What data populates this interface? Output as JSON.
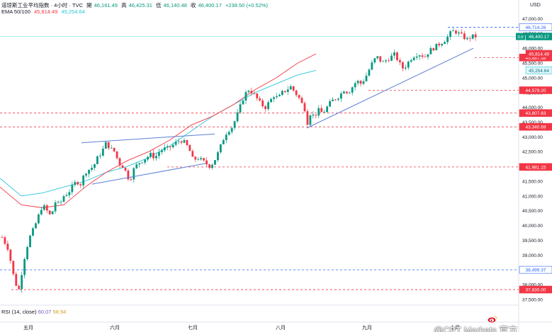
{
  "header": {
    "symbol": "道琼斯工业平均指数 · 4小时 · TVC",
    "open_label": "開",
    "open": "46,161.49",
    "high_label": "高",
    "high": "46,425.31",
    "low_label": "低",
    "low": "46,140.48",
    "close_label": "收",
    "close": "46,400.17",
    "change": "+238.50 (+0.52%)",
    "ema_label": "EMA 50/100",
    "ema50": "45,814.49",
    "ema100": "45,254.64",
    "rsi_label": "RSI (14, close)",
    "rsi1": "60.07",
    "rsi2": "58.94"
  },
  "currency": "USD",
  "watermark": "@CPT Markets 官方",
  "colors": {
    "up": "#089981",
    "down": "#f23645",
    "ema50": "#f23645",
    "ema100": "#26c6da",
    "trendline": "#5b7fd6",
    "level": "#f23645",
    "level_blue": "#2962ff",
    "last_price_bg": "#089981",
    "ema100_tag_bg": "#dff6fb",
    "rsi_yellow": "#d4a017"
  },
  "chart_data": {
    "type": "candlestick",
    "y_axis": {
      "min": 37400,
      "max": 47300,
      "ticks": [
        37500,
        38000,
        38500,
        39000,
        39500,
        40000,
        40500,
        41000,
        41500,
        42000,
        42500,
        43000,
        43500,
        44000,
        44500,
        45000,
        45500,
        46000,
        46500,
        47000
      ],
      "tick_labels": [
        "37,500.00",
        "38,000.00",
        "38,500.00",
        "39,000.00",
        "39,500.00",
        "40,000.00",
        "40,500.00",
        "41,000.00",
        "41,500.00",
        "42,000.00",
        "42,500.00",
        "43,000.00",
        "43,500.00",
        "44,000.00",
        "44,500.00",
        "45,000.00",
        "45,500.00",
        "46,000.00",
        "46,500.00",
        "47,000.00"
      ]
    },
    "x_axis": {
      "labels": [
        "五月",
        "六月",
        "七月",
        "八月",
        "九月",
        "十月"
      ],
      "label_positions": [
        40,
        162,
        272,
        396,
        518,
        642
      ],
      "range": [
        0,
        696
      ]
    },
    "price_path": [
      [
        0,
        39600
      ],
      [
        6,
        39200
      ],
      [
        10,
        38400
      ],
      [
        14,
        37900
      ],
      [
        16,
        37830
      ],
      [
        18,
        38300
      ],
      [
        22,
        39100
      ],
      [
        26,
        39600
      ],
      [
        30,
        39900
      ],
      [
        34,
        40300
      ],
      [
        38,
        40700
      ],
      [
        42,
        40500
      ],
      [
        46,
        40300
      ],
      [
        50,
        40800
      ],
      [
        54,
        40700
      ],
      [
        58,
        41000
      ],
      [
        62,
        41100
      ],
      [
        66,
        41300
      ],
      [
        70,
        41500
      ],
      [
        74,
        41400
      ],
      [
        78,
        41800
      ],
      [
        82,
        41900
      ],
      [
        86,
        42000
      ],
      [
        90,
        42300
      ],
      [
        94,
        42500
      ],
      [
        98,
        42800
      ],
      [
        102,
        42600
      ],
      [
        106,
        42500
      ],
      [
        110,
        42100
      ],
      [
        114,
        42000
      ],
      [
        118,
        41700
      ],
      [
        120,
        41500
      ],
      [
        124,
        41900
      ],
      [
        128,
        42100
      ],
      [
        132,
        42200
      ],
      [
        136,
        42300
      ],
      [
        140,
        42400
      ],
      [
        144,
        42300
      ],
      [
        148,
        42500
      ],
      [
        152,
        42600
      ],
      [
        156,
        42600
      ],
      [
        160,
        42700
      ],
      [
        164,
        42800
      ],
      [
        168,
        42900
      ],
      [
        172,
        42800
      ],
      [
        176,
        42600
      ],
      [
        180,
        42200
      ],
      [
        184,
        42300
      ],
      [
        188,
        42200
      ],
      [
        192,
        42100
      ],
      [
        196,
        42000
      ],
      [
        200,
        42200
      ],
      [
        204,
        42500
      ],
      [
        208,
        42900
      ],
      [
        212,
        43200
      ],
      [
        216,
        43300
      ],
      [
        220,
        43600
      ],
      [
        224,
        44000
      ],
      [
        228,
        44400
      ],
      [
        232,
        44600
      ],
      [
        236,
        44500
      ],
      [
        240,
        44300
      ],
      [
        244,
        44100
      ],
      [
        248,
        44000
      ],
      [
        252,
        44200
      ],
      [
        256,
        44400
      ],
      [
        260,
        44300
      ],
      [
        264,
        44500
      ],
      [
        268,
        44600
      ],
      [
        272,
        44700
      ],
      [
        276,
        44500
      ],
      [
        280,
        44300
      ],
      [
        284,
        44000
      ],
      [
        286,
        43900
      ],
      [
        288,
        43400
      ],
      [
        290,
        43800
      ],
      [
        294,
        43700
      ],
      [
        298,
        43900
      ],
      [
        302,
        43800
      ],
      [
        306,
        44000
      ],
      [
        310,
        44200
      ],
      [
        314,
        44300
      ],
      [
        318,
        44400
      ],
      [
        322,
        44600
      ],
      [
        326,
        44500
      ],
      [
        330,
        44700
      ],
      [
        334,
        44900
      ],
      [
        338,
        44800
      ],
      [
        342,
        45000
      ],
      [
        346,
        45300
      ],
      [
        350,
        45600
      ],
      [
        354,
        45700
      ],
      [
        358,
        45500
      ],
      [
        362,
        45600
      ],
      [
        366,
        45700
      ],
      [
        370,
        45800
      ],
      [
        374,
        45500
      ],
      [
        378,
        45300
      ],
      [
        382,
        45500
      ],
      [
        386,
        45700
      ],
      [
        390,
        45800
      ],
      [
        394,
        45800
      ],
      [
        398,
        45700
      ],
      [
        402,
        45900
      ],
      [
        406,
        46000
      ],
      [
        410,
        46100
      ],
      [
        414,
        46200
      ],
      [
        418,
        46300
      ],
      [
        422,
        46500
      ],
      [
        426,
        46600
      ],
      [
        430,
        46500
      ],
      [
        434,
        46400
      ],
      [
        438,
        46300
      ],
      [
        442,
        46400
      ],
      [
        446,
        46400
      ]
    ],
    "ema50_path": [
      [
        0,
        41300
      ],
      [
        30,
        40700
      ],
      [
        60,
        40600
      ],
      [
        90,
        40700
      ],
      [
        120,
        41300
      ],
      [
        150,
        41800
      ],
      [
        180,
        42200
      ],
      [
        210,
        42500
      ],
      [
        240,
        42900
      ],
      [
        270,
        43400
      ],
      [
        300,
        43700
      ],
      [
        330,
        44100
      ],
      [
        360,
        44600
      ],
      [
        390,
        45000
      ],
      [
        420,
        45500
      ],
      [
        446,
        45814
      ]
    ],
    "ema100_path": [
      [
        0,
        41600
      ],
      [
        30,
        41000
      ],
      [
        60,
        41100
      ],
      [
        90,
        41300
      ],
      [
        120,
        41500
      ],
      [
        150,
        41800
      ],
      [
        180,
        42000
      ],
      [
        210,
        42300
      ],
      [
        240,
        42700
      ],
      [
        270,
        43200
      ],
      [
        300,
        43700
      ],
      [
        330,
        44100
      ],
      [
        360,
        44500
      ],
      [
        390,
        44800
      ],
      [
        420,
        45100
      ],
      [
        446,
        45254
      ]
    ],
    "trendlines": [
      {
        "from": [
          115,
          42800
        ],
        "to": [
          303,
          43100
        ]
      },
      {
        "from": [
          130,
          41400
        ],
        "to": [
          290,
          42100
        ]
      },
      {
        "from": [
          433,
          43300
        ],
        "to": [
          668,
          46000
        ]
      }
    ],
    "levels": [
      {
        "value": 46714.26,
        "label": "46,714.26",
        "style": "blue-dash",
        "x_start": 632
      },
      {
        "value": 45687.58,
        "label": "45,687.58",
        "style": "red-dash",
        "x_start": 670
      },
      {
        "value": 44579.2,
        "label": "44,579.20",
        "style": "red-dash",
        "x_start": 520
      },
      {
        "value": 43807.83,
        "label": "43,807.83",
        "style": "red-dash",
        "x_start": 0
      },
      {
        "value": 43340.69,
        "label": "43,340.69",
        "style": "red-dash",
        "x_start": 0
      },
      {
        "value": 41981.15,
        "label": "41,981.15",
        "style": "red-dash",
        "x_start": 236
      },
      {
        "value": 38499.37,
        "label": "38,499.37",
        "style": "blue-dash",
        "x_start": 0
      },
      {
        "value": 37830.0,
        "label": "37,830.00",
        "style": "red-dash",
        "x_start": 16
      }
    ],
    "price_tags": [
      {
        "value": 46400.17,
        "label": "46,400.17",
        "kind": "last",
        "prefix": "DJI"
      },
      {
        "value": 45814.49,
        "label": "45,814.49",
        "kind": "ema50"
      },
      {
        "value": 45254.64,
        "label": "45,254.64",
        "kind": "ema100"
      }
    ]
  }
}
